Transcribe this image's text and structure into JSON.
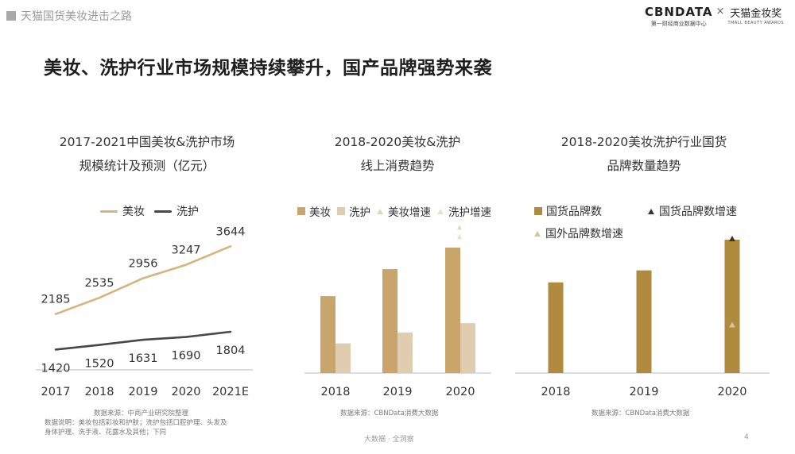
{
  "header": {
    "breadcrumb": "天猫国货美妆进击之路",
    "logo_cbn": "CBNDATA",
    "logo_cbn_sub": "第一财经商业数据中心",
    "logo_x": "×",
    "logo_tmall": "天猫金妆奖",
    "logo_tmall_sub": "TMALL BEAUTY AWARDS"
  },
  "page_title": "美妆、洗护行业市场规模持续攀升，国产品牌强势来袭",
  "colors": {
    "beauty_gold": "#d4b47f",
    "care_dark": "#47464d",
    "bar_beauty": "#c9a56c",
    "bar_care": "#e0cdb0",
    "bar_brand": "#b08a3e",
    "tri_brand": "#3b3524",
    "tri_foreign": "#d8c497",
    "axis": "#bbbbbb"
  },
  "chart_data": [
    {
      "type": "line",
      "title_line1": "2017-2021中国美妆&洗护市场",
      "title_line2": "规模统计及预测（亿元）",
      "categories": [
        "2017",
        "2018",
        "2019",
        "2020",
        "2021E"
      ],
      "series": [
        {
          "name": "美妆",
          "values": [
            2185,
            2535,
            2956,
            3247,
            3644
          ]
        },
        {
          "name": "洗护",
          "values": [
            1420,
            1520,
            1631,
            1690,
            1804
          ]
        }
      ],
      "source": "数据来源：中商产业研究院整理",
      "note_line1": "数据说明：美妆包括彩妆和护肤；洗护包括口腔护理、头发及",
      "note_line2": "身体护理、洗手液、花露水及其他；下同"
    },
    {
      "type": "bar",
      "title_line1": "2018-2020美妆&洗护",
      "title_line2": "线上消费趋势",
      "categories": [
        "2018",
        "2019",
        "2020"
      ],
      "series": [
        {
          "name": "美妆",
          "values": [
            0.57,
            0.77,
            0.93
          ]
        },
        {
          "name": "洗护",
          "values": [
            0.22,
            0.3,
            0.37
          ]
        },
        {
          "name": "美妆增速",
          "values": [
            null,
            null,
            1.08
          ]
        },
        {
          "name": "洗护增速",
          "values": [
            null,
            null,
            1.01
          ]
        }
      ],
      "source": "数据来源：CBNData消费大数据"
    },
    {
      "type": "bar",
      "title_line1": "2018-2020美妆洗护行业国货",
      "title_line2": "品牌数量趋势",
      "categories": [
        "2018",
        "2019",
        "2020"
      ],
      "series": [
        {
          "name": "国货品牌数",
          "values": [
            0.68,
            0.77,
            1.0
          ]
        },
        {
          "name": "国货品牌数增速",
          "values": [
            null,
            null,
            1.0
          ]
        },
        {
          "name": "国外品牌数增速",
          "values": [
            null,
            null,
            0.36
          ]
        }
      ],
      "source": "数据来源：CBNData消费大数据"
    }
  ],
  "footer": {
    "center": "大数据 · 全洞察",
    "page": "4"
  }
}
